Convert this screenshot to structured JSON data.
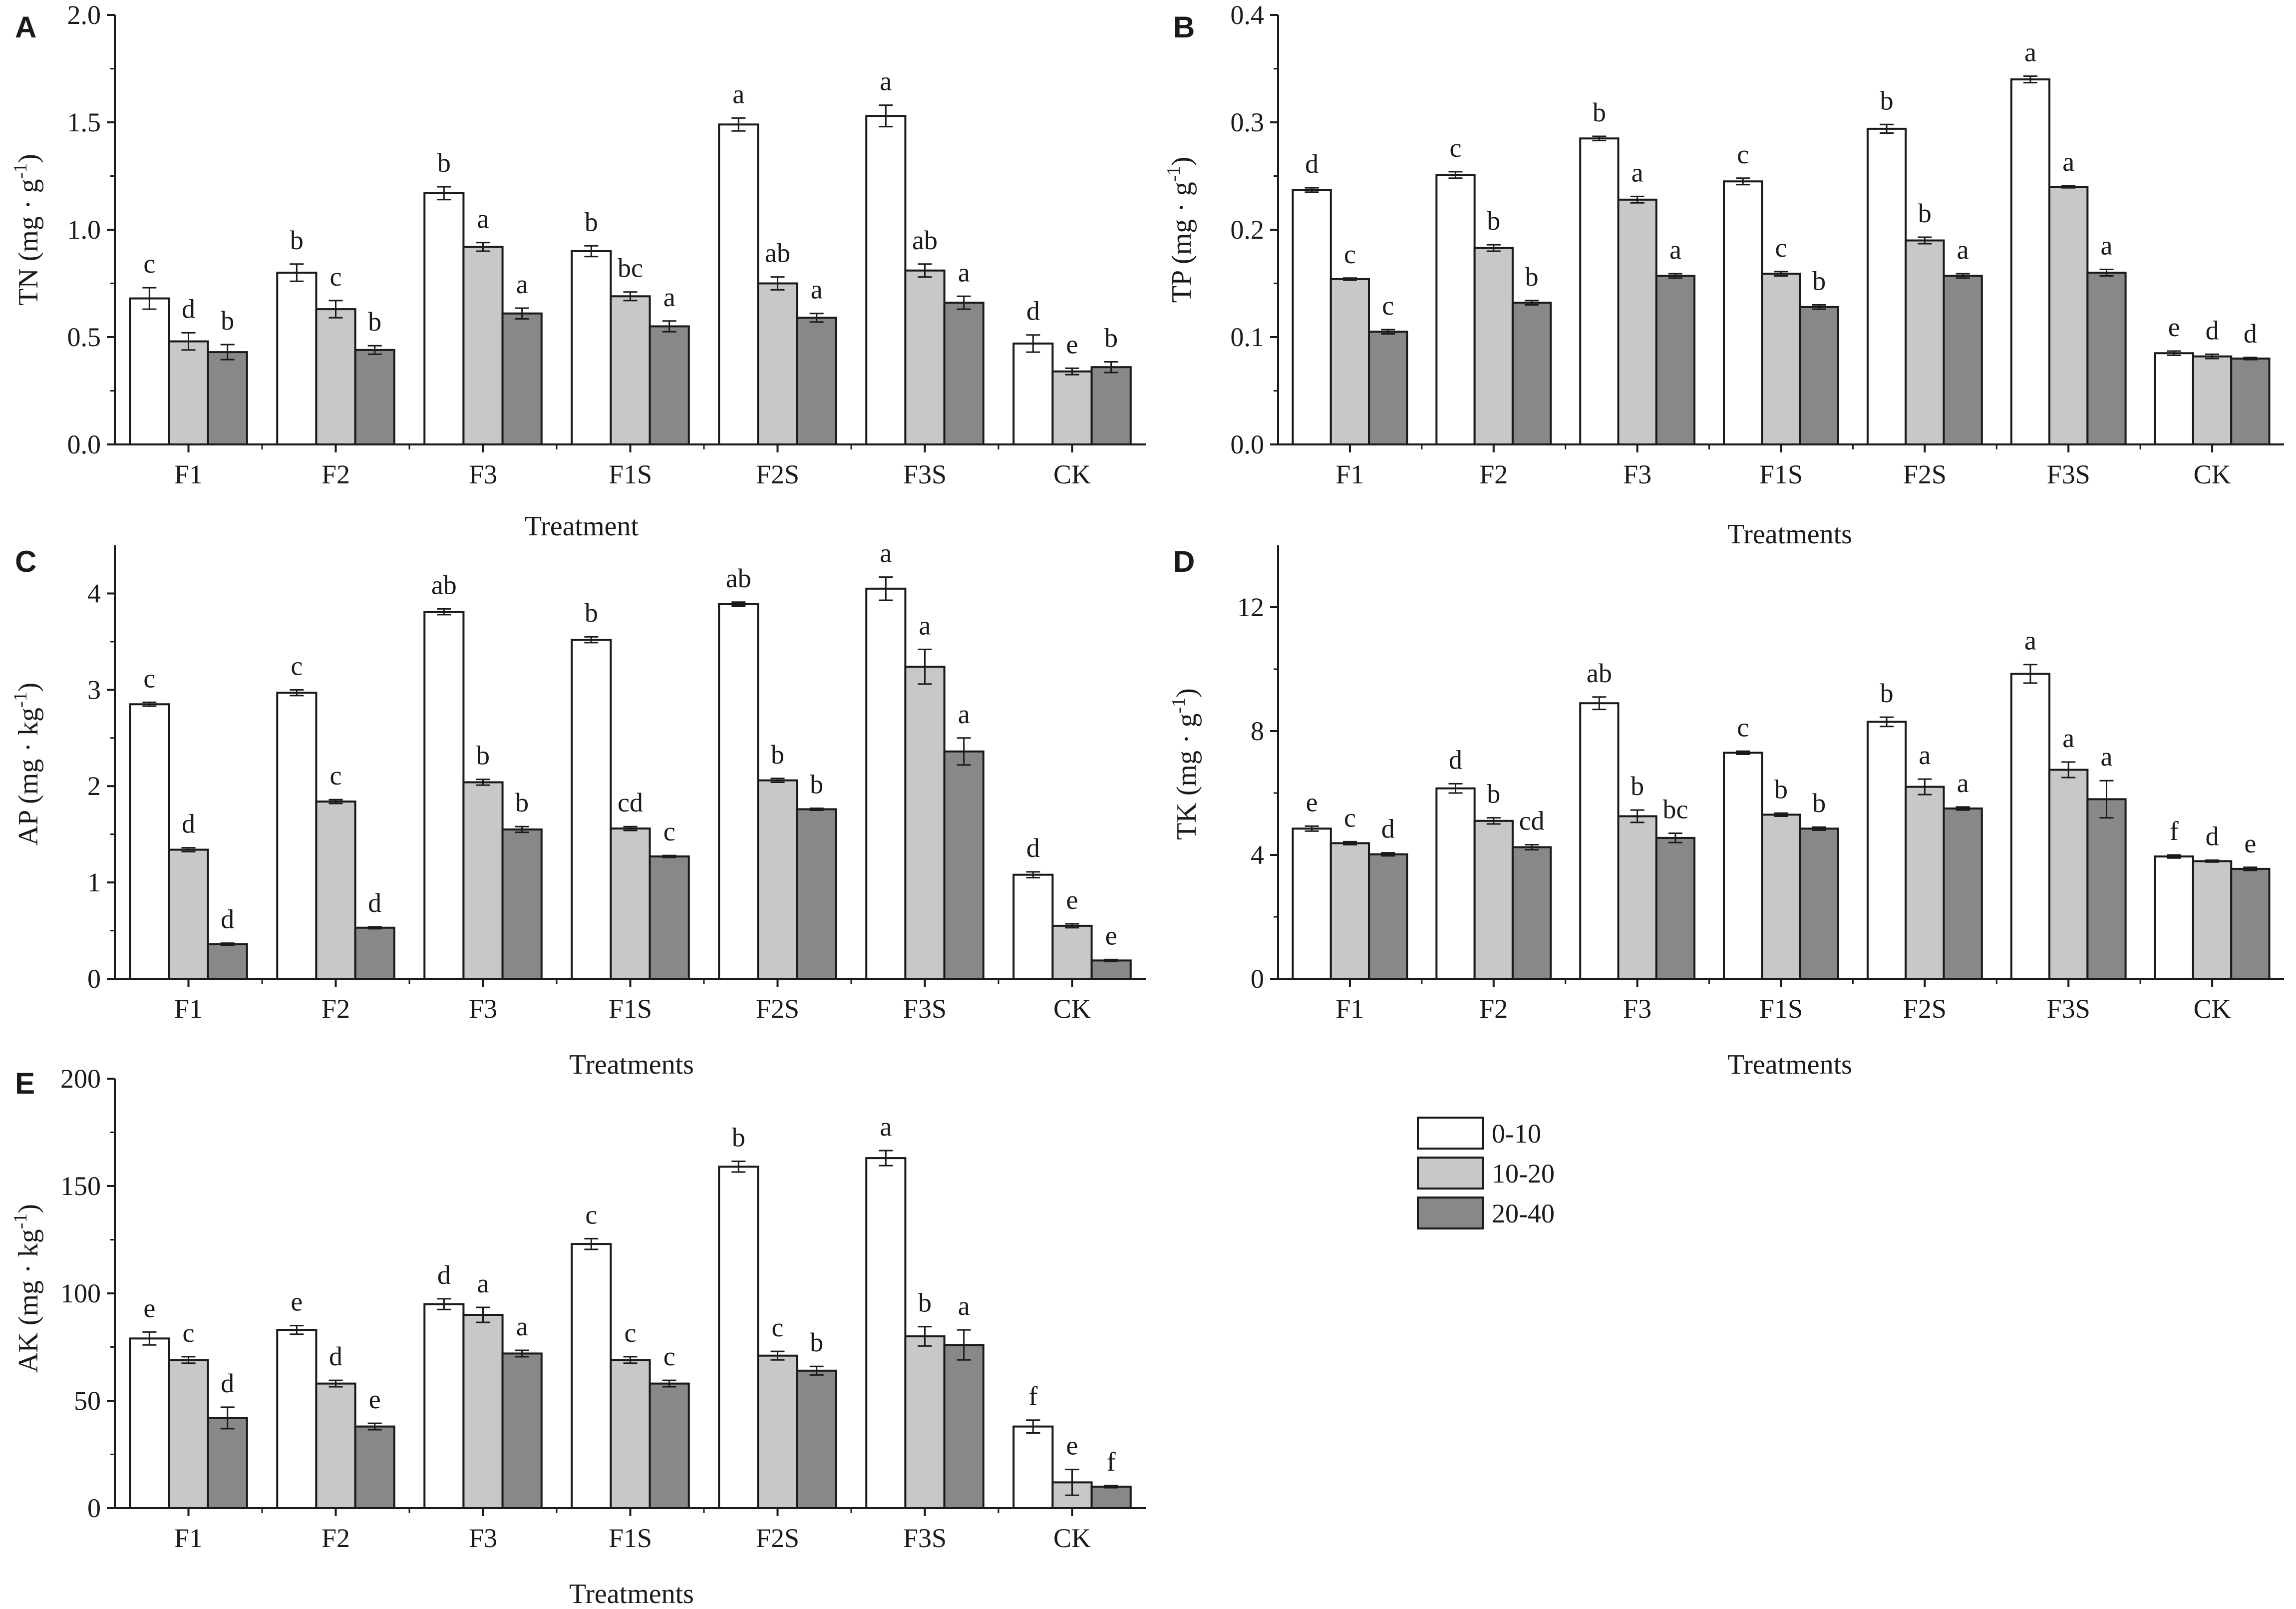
{
  "legend": {
    "items": [
      {
        "label": "0-10",
        "color": "#ffffff"
      },
      {
        "label": "10-20",
        "color": "#c8c8c8"
      },
      {
        "label": "20-40",
        "color": "#888888"
      }
    ]
  },
  "chart_data": [
    {
      "panel": "A",
      "type": "bar",
      "categories": [
        "F1",
        "F2",
        "F3",
        "F1S",
        "F2S",
        "F3S",
        "CK"
      ],
      "ylabel_main": "TN (mg · g",
      "ylabel_sup": "-1",
      "ylabel_close": ")",
      "xlabel": "Treatment",
      "ylim": [
        0,
        2.0
      ],
      "yticks": [
        "0.0",
        "0.5",
        "1.0",
        "1.5",
        "2.0"
      ],
      "ytick_values": [
        0,
        0.5,
        1.0,
        1.5,
        2.0
      ],
      "series": [
        {
          "name": "0-10",
          "values": [
            0.68,
            0.8,
            1.17,
            0.9,
            1.49,
            1.53,
            0.47
          ],
          "errors": [
            0.05,
            0.04,
            0.03,
            0.025,
            0.03,
            0.05,
            0.04
          ],
          "letters": [
            "c",
            "b",
            "b",
            "b",
            "a",
            "a",
            "d"
          ]
        },
        {
          "name": "10-20",
          "values": [
            0.48,
            0.63,
            0.92,
            0.69,
            0.75,
            0.81,
            0.34
          ],
          "errors": [
            0.04,
            0.04,
            0.02,
            0.02,
            0.03,
            0.03,
            0.015
          ],
          "letters": [
            "d",
            "c",
            "a",
            "bc",
            "ab",
            "ab",
            "e"
          ]
        },
        {
          "name": "20-40",
          "values": [
            0.43,
            0.44,
            0.61,
            0.55,
            0.59,
            0.66,
            0.36
          ],
          "errors": [
            0.035,
            0.02,
            0.025,
            0.025,
            0.02,
            0.03,
            0.025
          ],
          "letters": [
            "b",
            "b",
            "a",
            "a",
            "a",
            "a",
            "b"
          ]
        }
      ]
    },
    {
      "panel": "B",
      "type": "bar",
      "categories": [
        "F1",
        "F2",
        "F3",
        "F1S",
        "F2S",
        "F3S",
        "CK"
      ],
      "ylabel_main": "TP (mg · g",
      "ylabel_sup": "-1",
      "ylabel_close": ")",
      "xlabel": "Treatments",
      "ylim": [
        0,
        0.4
      ],
      "yticks": [
        "0.0",
        "0.1",
        "0.2",
        "0.3",
        "0.4"
      ],
      "ytick_values": [
        0,
        0.1,
        0.2,
        0.3,
        0.4
      ],
      "series": [
        {
          "name": "0-10",
          "values": [
            0.237,
            0.251,
            0.285,
            0.245,
            0.294,
            0.34,
            0.085
          ],
          "errors": [
            0.002,
            0.003,
            0.002,
            0.003,
            0.004,
            0.003,
            0.002
          ],
          "letters": [
            "d",
            "c",
            "b",
            "c",
            "b",
            "a",
            "e"
          ]
        },
        {
          "name": "10-20",
          "values": [
            0.154,
            0.183,
            0.228,
            0.159,
            0.19,
            0.24,
            0.082
          ],
          "errors": [
            0.001,
            0.003,
            0.003,
            0.002,
            0.003,
            0.001,
            0.002
          ],
          "letters": [
            "c",
            "b",
            "a",
            "c",
            "b",
            "a",
            "d"
          ]
        },
        {
          "name": "20-40",
          "values": [
            0.105,
            0.132,
            0.157,
            0.128,
            0.157,
            0.16,
            0.08
          ],
          "errors": [
            0.002,
            0.002,
            0.002,
            0.002,
            0.002,
            0.003,
            0.001
          ],
          "letters": [
            "c",
            "b",
            "a",
            "b",
            "a",
            "a",
            "d"
          ]
        }
      ]
    },
    {
      "panel": "C",
      "type": "bar",
      "categories": [
        "F1",
        "F2",
        "F3",
        "F1S",
        "F2S",
        "F3S",
        "CK"
      ],
      "ylabel_main": "AP (mg · kg",
      "ylabel_sup": "-1",
      "ylabel_close": ")",
      "xlabel": "Treatments",
      "ylim": [
        0,
        4.5
      ],
      "yticks": [
        "0",
        "1",
        "2",
        "3",
        "4"
      ],
      "ytick_values": [
        0,
        1,
        2,
        3,
        4
      ],
      "series": [
        {
          "name": "0-10",
          "values": [
            2.85,
            2.97,
            3.81,
            3.52,
            3.89,
            4.05,
            1.08
          ],
          "errors": [
            0.02,
            0.03,
            0.03,
            0.03,
            0.02,
            0.12,
            0.03
          ],
          "letters": [
            "c",
            "c",
            "ab",
            "b",
            "ab",
            "a",
            "d"
          ]
        },
        {
          "name": "10-20",
          "values": [
            1.34,
            1.84,
            2.04,
            1.56,
            2.06,
            3.24,
            0.55
          ],
          "errors": [
            0.02,
            0.02,
            0.03,
            0.02,
            0.02,
            0.18,
            0.02
          ],
          "letters": [
            "d",
            "c",
            "b",
            "cd",
            "b",
            "a",
            "e"
          ]
        },
        {
          "name": "20-40",
          "values": [
            0.36,
            0.53,
            1.55,
            1.27,
            1.76,
            2.36,
            0.19
          ],
          "errors": [
            0.01,
            0.01,
            0.03,
            0.01,
            0.01,
            0.14,
            0.01
          ],
          "letters": [
            "d",
            "d",
            "b",
            "c",
            "b",
            "a",
            "e"
          ]
        }
      ]
    },
    {
      "panel": "D",
      "type": "bar",
      "categories": [
        "F1",
        "F2",
        "F3",
        "F1S",
        "F2S",
        "F3S",
        "CK"
      ],
      "ylabel_main": "TK (mg · g",
      "ylabel_sup": "-1",
      "ylabel_close": ")",
      "xlabel": "Treatments",
      "ylim": [
        0,
        14
      ],
      "yticks": [
        "0",
        "4",
        "8",
        "12"
      ],
      "ytick_values": [
        0,
        4,
        8,
        12
      ],
      "series": [
        {
          "name": "0-10",
          "values": [
            4.85,
            6.15,
            8.9,
            7.3,
            8.3,
            9.85,
            3.95
          ],
          "errors": [
            0.08,
            0.15,
            0.2,
            0.05,
            0.15,
            0.3,
            0.05
          ],
          "letters": [
            "e",
            "d",
            "ab",
            "c",
            "b",
            "a",
            "f"
          ]
        },
        {
          "name": "10-20",
          "values": [
            4.38,
            5.1,
            5.25,
            5.3,
            6.2,
            6.75,
            3.8
          ],
          "errors": [
            0.05,
            0.1,
            0.2,
            0.05,
            0.25,
            0.25,
            0.03
          ],
          "letters": [
            "c",
            "b",
            "b",
            "b",
            "a",
            "a",
            "d"
          ]
        },
        {
          "name": "20-40",
          "values": [
            4.02,
            4.25,
            4.55,
            4.85,
            5.5,
            5.8,
            3.55
          ],
          "errors": [
            0.05,
            0.08,
            0.15,
            0.05,
            0.05,
            0.6,
            0.05
          ],
          "letters": [
            "d",
            "cd",
            "bc",
            "b",
            "a",
            "a",
            "e"
          ]
        }
      ]
    },
    {
      "panel": "E",
      "type": "bar",
      "categories": [
        "F1",
        "F2",
        "F3",
        "F1S",
        "F2S",
        "F3S",
        "CK"
      ],
      "ylabel_main": "AK (mg · kg",
      "ylabel_sup": "-1",
      "ylabel_close": ")",
      "xlabel": "Treatments",
      "ylim": [
        0,
        200
      ],
      "yticks": [
        "0",
        "50",
        "100",
        "150",
        "200"
      ],
      "ytick_values": [
        0,
        50,
        100,
        150,
        200
      ],
      "series": [
        {
          "name": "0-10",
          "values": [
            79,
            83,
            95,
            123,
            159,
            163,
            38
          ],
          "errors": [
            3,
            2,
            2.5,
            2.5,
            2.5,
            3.5,
            3
          ],
          "letters": [
            "e",
            "e",
            "d",
            "c",
            "b",
            "a",
            "f"
          ]
        },
        {
          "name": "10-20",
          "values": [
            69,
            58,
            90,
            69,
            71,
            80,
            12
          ],
          "errors": [
            1.5,
            1.5,
            3.5,
            1.5,
            2,
            4.5,
            6
          ],
          "letters": [
            "c",
            "d",
            "a",
            "c",
            "c",
            "b",
            "e"
          ]
        },
        {
          "name": "20-40",
          "values": [
            42,
            38,
            72,
            58,
            64,
            76,
            10
          ],
          "errors": [
            5,
            1.5,
            1.5,
            1.5,
            2,
            7,
            0.5
          ],
          "letters": [
            "d",
            "e",
            "a",
            "c",
            "b",
            "a",
            "f"
          ]
        }
      ]
    }
  ]
}
